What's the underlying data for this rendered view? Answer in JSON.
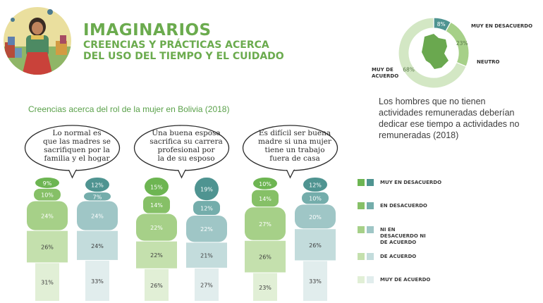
{
  "header": {
    "title": "IMAGINARIOS",
    "subtitle_line1": "CREENCIAS Y PRÁCTICAS ACERCA",
    "subtitle_line2": "DEL USO DEL TIEMPO Y EL CUIDADO"
  },
  "section_title": "Creencias acerca del rol de la mujer en Bolivia  (2018)",
  "colors": {
    "green": [
      "#6db552",
      "#86c067",
      "#a6d088",
      "#c4e0ad",
      "#e1efd6"
    ],
    "teal": [
      "#4f9491",
      "#74adab",
      "#9fc6c6",
      "#c3dcdc",
      "#e1eded"
    ]
  },
  "legend": [
    "MUY EN DESACUERDO",
    "EN DESACUERDO",
    "NI EN DESACUERDO NI DE ACUERDO",
    "DE ACUERDO",
    "MUY DE ACUERDO"
  ],
  "chart_data": [
    {
      "type": "pie",
      "title": "Los hombres que no tienen actividades remuneradas deberían dedicar ese tiempo a actividades no remuneradas (2018)",
      "labels": [
        "MUY EN DESACUERDO",
        "NEUTRO",
        "MUY DE ACUERDO"
      ],
      "values": [
        8,
        23,
        68
      ],
      "display": [
        "8%",
        "23%",
        "68%"
      ]
    },
    {
      "type": "bar",
      "stacked": true,
      "categories": [
        "Lo normal es que las madres se sacrifiquen por la familia y el hogar",
        "Una buena esposa sacrifica su carrera profesional por la de su esposo",
        "Es difícil ser buena madre si una mujer tiene un trabajo fuera de casa"
      ],
      "statements": [
        [
          "Lo normal es",
          "que las madres se",
          "sacrifiquen por la",
          "familia y el hogar"
        ],
        [
          "Una buena esposa",
          "sacrifica su carrera",
          "profesional por",
          "la de su esposo"
        ],
        [
          "Es difícil ser buena",
          "madre si una mujer",
          "tiene un trabajo",
          "fuera de casa"
        ]
      ],
      "series": [
        {
          "name": "MUY EN DESACUERDO",
          "values": [
            [
              9,
              12
            ],
            [
              15,
              19
            ],
            [
              10,
              12
            ]
          ]
        },
        {
          "name": "EN DESACUERDO",
          "values": [
            [
              10,
              7
            ],
            [
              14,
              12
            ],
            [
              14,
              10
            ]
          ]
        },
        {
          "name": "NI EN DESACUERDO NI DE ACUERDO",
          "values": [
            [
              24,
              24
            ],
            [
              22,
              22
            ],
            [
              27,
              20
            ]
          ]
        },
        {
          "name": "DE ACUERDO",
          "values": [
            [
              26,
              24
            ],
            [
              22,
              21
            ],
            [
              26,
              26
            ]
          ]
        },
        {
          "name": "MUY DE ACUERDO",
          "values": [
            [
              31,
              33
            ],
            [
              26,
              27
            ],
            [
              23,
              33
            ]
          ]
        }
      ],
      "labels": [
        [
          [
            "9%",
            "10%",
            "24%",
            "26%",
            "31%"
          ],
          [
            "12%",
            "7%",
            "24%",
            "24%",
            "33%"
          ]
        ],
        [
          [
            "15%",
            "14%",
            "22%",
            "22%",
            "26%"
          ],
          [
            "19%",
            "12%",
            "22%",
            "21%",
            "27%"
          ]
        ],
        [
          [
            "10%",
            "14%",
            "27%",
            "26%",
            "23%"
          ],
          [
            "12%",
            "10%",
            "20%",
            "26%",
            "33%"
          ]
        ]
      ]
    }
  ]
}
